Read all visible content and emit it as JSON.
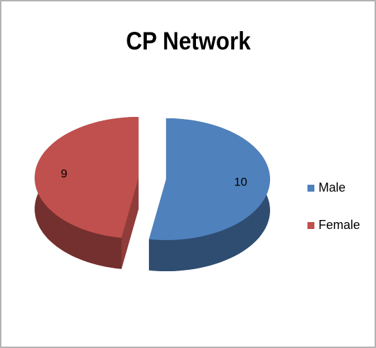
{
  "chart_data": {
    "type": "pie",
    "title": "CP Network",
    "categories": [
      "Male",
      "Female"
    ],
    "values": [
      10,
      9
    ],
    "colors": [
      "#4f81bd",
      "#c0504d"
    ],
    "legend": "right"
  }
}
